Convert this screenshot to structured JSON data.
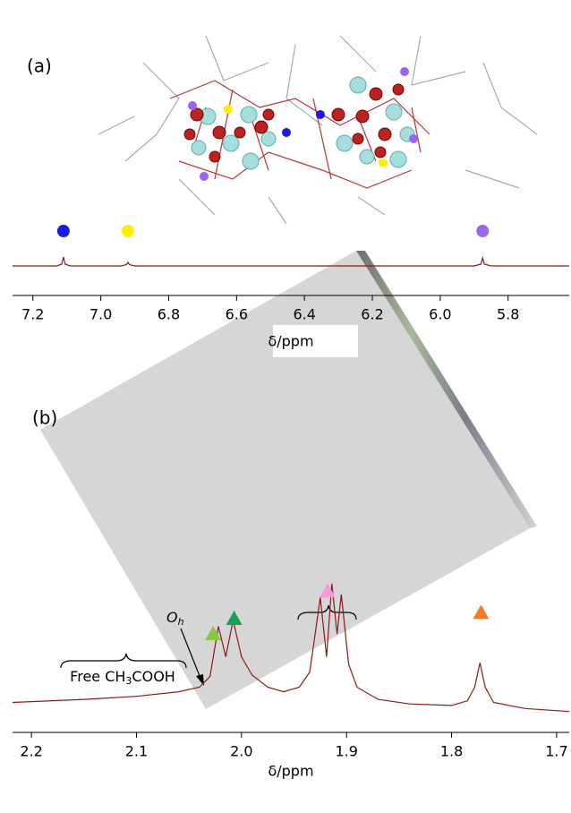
{
  "chart_data": [
    {
      "type": "line",
      "title": "(a)",
      "xlabel": "δ/ppm",
      "x": [
        7.26,
        7.13,
        7.115,
        7.11,
        7.105,
        7.09,
        6.94,
        6.925,
        6.92,
        6.915,
        6.9,
        5.9,
        5.88,
        5.875,
        5.87,
        5.85,
        5.62
      ],
      "series": [
        {
          "color": "#8b1a1a",
          "values": [
            15,
            15,
            25,
            65,
            25,
            15,
            15,
            22,
            35,
            22,
            15,
            15,
            25,
            60,
            25,
            15,
            15
          ]
        }
      ],
      "xlim": [
        7.26,
        5.62
      ],
      "ylim": [
        0,
        100
      ],
      "xticks": [
        7.2,
        {
          "value": 7,
          "label": "7.0"
        },
        6.8,
        6.6,
        6.4,
        6.2,
        {
          "value": 6,
          "label": "6.0"
        },
        5.8
      ],
      "markers": [
        {
          "x": 7.11,
          "y": 210,
          "shape": "circle",
          "color": "#1a1ae6"
        },
        {
          "x": 6.92,
          "y": 210,
          "shape": "circle",
          "color": "#ffee00"
        },
        {
          "x": 5.875,
          "y": 210,
          "shape": "circle",
          "color": "#9966ee"
        }
      ]
    },
    {
      "type": "line",
      "title": "(b)",
      "xlabel": "δ/ppm",
      "x": [
        2.218,
        2.15,
        2.1,
        2.06,
        2.04,
        2.03,
        2.022,
        2.015,
        2.008,
        2.0,
        1.99,
        1.975,
        1.96,
        1.945,
        1.935,
        1.925,
        1.919,
        1.914,
        1.909,
        1.905,
        1.898,
        1.89,
        1.87,
        1.84,
        1.8,
        1.785,
        1.778,
        1.773,
        1.768,
        1.76,
        1.73,
        1.688
      ],
      "series": [
        {
          "color": "#8b1a1a",
          "values": [
            15,
            17,
            19,
            22,
            25,
            32,
            65,
            45,
            69,
            45,
            33,
            25,
            22,
            25,
            35,
            84,
            45,
            93,
            60,
            86,
            40,
            25,
            17,
            14,
            13,
            16,
            25,
            41,
            25,
            15,
            11,
            9
          ]
        }
      ],
      "xlim": [
        2.218,
        1.688
      ],
      "ylim": [
        0,
        100
      ],
      "xticks": [
        2.2,
        2.1,
        {
          "value": 2,
          "label": "2.0"
        },
        1.9,
        1.8,
        1.7
      ],
      "markers": [
        {
          "x": 2.027,
          "y": 60,
          "shape": "triangle",
          "color": "#8cc63f"
        },
        {
          "x": 2.007,
          "y": 70,
          "shape": "triangle",
          "color": "#1aa050"
        },
        {
          "x": 1.918,
          "y": 88,
          "shape": "triangle",
          "color": "#f29bd4"
        },
        {
          "x": 1.772,
          "y": 74,
          "shape": "triangle",
          "color": "#f07a2a"
        }
      ],
      "annotations": {
        "free_acid": [
          "Free CH",
          "3",
          "COOH"
        ],
        "oh": [
          "O",
          "h"
        ]
      }
    }
  ]
}
